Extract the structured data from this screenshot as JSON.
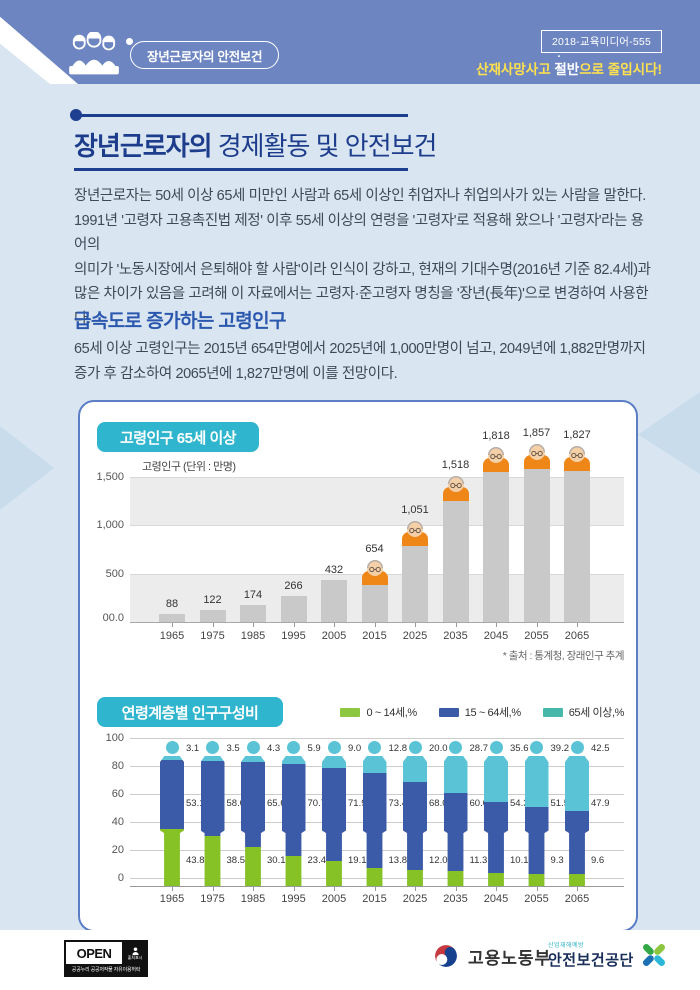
{
  "header": {
    "ribbon_title": "장년근로자의 안전보건",
    "doc_code": "2018-교육미디어-555",
    "slogan": {
      "prefix": "산재사망사고 ",
      "emphasis": "절반",
      "suffix": "으로 줄입시다!"
    },
    "banner_color": "#6d86c2",
    "slogan_color": "#ffe14d"
  },
  "title": {
    "bold": "장년근로자의",
    "regular": " 경제활동 및 안전보건"
  },
  "intro": {
    "lines": [
      "장년근로자는 50세 이상 65세 미만인 사람과 65세 이상인 취업자나 취업의사가 있는 사람을 말한다.",
      "1991년 '고령자 고용촉진법 제정' 이후 55세 이상의 연령을 '고령자'로 적용해 왔으나 '고령자'라는 용어의",
      "의미가 '노동시장에서 은퇴해야 할 사람'이라 인식이 강하고, 현재의 기대수명(2016년 기준 82.4세)과",
      "많은 차이가 있음을 고려해 이 자료에서는 고령자·준고령자 명칭을 '장년(長年)'으로 변경하여 사용한다."
    ]
  },
  "section": {
    "heading": "급속도로 증가하는 고령인구",
    "lines": [
      "65세 이상 고령인구는 2015년 654만명에서 2025년에 1,000만명이 넘고, 2049년에 1,882만명까지",
      "증가 후 감소하여 2065년에 1,827만명에 이를 전망이다."
    ]
  },
  "chart1": {
    "badge": "고령인구 65세 이상",
    "unit_label": "고령인구 (단위 : 만명)",
    "y_ticks": [
      "1,500",
      "1,000",
      "500",
      "00.0"
    ],
    "years": [
      "1965",
      "1975",
      "1985",
      "1995",
      "2005",
      "2015",
      "2025",
      "2035",
      "2045",
      "2055",
      "2065"
    ],
    "values": [
      88,
      122,
      174,
      266,
      432,
      654,
      1051,
      1518,
      1818,
      1857,
      1827
    ],
    "labels": [
      "88",
      "122",
      "174",
      "266",
      "432",
      "654",
      "1,051",
      "1,518",
      "1,818",
      "1,857",
      "1,827"
    ],
    "icon_from_index": 5,
    "bar_color": "#c9c9c9",
    "icon_color": "#ef8718",
    "source": "* 출처 : 통계청, 장래인구 추계"
  },
  "chart2": {
    "badge": "연령계층별 인구구성비",
    "legend": [
      {
        "label": "0 ~ 14세,%",
        "color": "#8dc63f"
      },
      {
        "label": "15 ~ 64세,%",
        "color": "#3b5ba8"
      },
      {
        "label": "65세 이상,%",
        "color": "#45b8ab"
      }
    ],
    "y_ticks": [
      "100",
      "80",
      "60",
      "40",
      "20",
      "0"
    ],
    "years": [
      "1965",
      "1975",
      "1985",
      "1995",
      "2005",
      "2015",
      "2025",
      "2035",
      "2045",
      "2055",
      "2065"
    ],
    "series": [
      {
        "name": "0 ~ 14세",
        "color": "#86c226",
        "values": [
          43.8,
          38.5,
          30.1,
          23.4,
          19.1,
          13.8,
          12.0,
          11.3,
          10.1,
          9.3,
          9.6
        ]
      },
      {
        "name": "15 ~ 64세",
        "color": "#3b5ba8",
        "values": [
          53.1,
          58.0,
          65.6,
          70.7,
          71.9,
          73.4,
          68.0,
          60.0,
          54.3,
          51.5,
          47.9
        ]
      },
      {
        "name": "65세 이상",
        "color": "#5ac4d6",
        "values": [
          3.1,
          3.5,
          4.3,
          5.9,
          9.0,
          12.8,
          20.0,
          28.7,
          35.6,
          39.2,
          42.5
        ]
      }
    ]
  },
  "chart_data": [
    {
      "type": "bar",
      "title": "고령인구 65세 이상",
      "ylabel": "고령인구 (단위 : 만명)",
      "categories": [
        "1965",
        "1975",
        "1985",
        "1995",
        "2005",
        "2015",
        "2025",
        "2035",
        "2045",
        "2055",
        "2065"
      ],
      "values": [
        88,
        122,
        174,
        266,
        432,
        654,
        1051,
        1518,
        1818,
        1857,
        1827
      ],
      "ylim": [
        0,
        1500
      ],
      "grid": true,
      "annotation": "* 출처 : 통계청, 장래인구 추계"
    },
    {
      "type": "bar",
      "title": "연령계층별 인구구성비",
      "stacked": true,
      "categories": [
        "1965",
        "1975",
        "1985",
        "1995",
        "2005",
        "2015",
        "2025",
        "2035",
        "2045",
        "2055",
        "2065"
      ],
      "series": [
        {
          "name": "0 ~ 14세,%",
          "values": [
            43.8,
            38.5,
            30.1,
            23.4,
            19.1,
            13.8,
            12.0,
            11.3,
            10.1,
            9.3,
            9.6
          ]
        },
        {
          "name": "15 ~ 64세,%",
          "values": [
            53.1,
            58.0,
            65.6,
            70.7,
            71.9,
            73.4,
            68.0,
            60.0,
            54.3,
            51.5,
            47.9
          ]
        },
        {
          "name": "65세 이상,%",
          "values": [
            3.1,
            3.5,
            4.3,
            5.9,
            9.0,
            12.8,
            20.0,
            28.7,
            35.6,
            39.2,
            42.5
          ]
        }
      ],
      "ylim": [
        0,
        100
      ],
      "grid": true,
      "legend_position": "top-right"
    }
  ],
  "footer": {
    "open_word": "OPEN",
    "open_mark_label": "출처표시",
    "open_sub": "공공누리 공공저작물 자유이용허락",
    "moel": "고용노동부",
    "kosha_top": "산업재해예방",
    "kosha": "안전보건공단"
  }
}
